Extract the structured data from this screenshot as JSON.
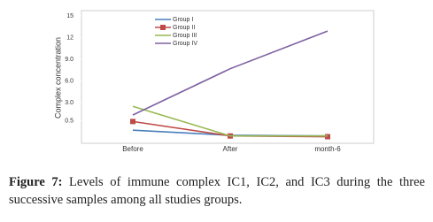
{
  "chart_data": {
    "type": "line",
    "y_label": "Complex concentration",
    "categories": [
      "Before",
      "After",
      "month-6"
    ],
    "series": [
      {
        "name": "Group I",
        "color": "#4a7ebb",
        "values": [
          -0.8,
          -1.5,
          -1.6
        ]
      },
      {
        "name": "Group II",
        "color": "#be4b48",
        "marker": "square",
        "values": [
          0.4,
          -1.6,
          -1.7
        ]
      },
      {
        "name": "Group III",
        "color": "#98b954",
        "values": [
          2.5,
          -1.6,
          -1.6
        ]
      },
      {
        "name": "Group IV",
        "color": "#7d60a0",
        "values": [
          1.3,
          7.7,
          12.9
        ]
      }
    ],
    "ylim": [
      -2,
      15
    ],
    "yticks": [
      0.5,
      {
        "value": 3,
        "label": "3.0"
      },
      {
        "value": 6,
        "label": "6.0"
      },
      {
        "value": 9,
        "label": "9.0"
      },
      12,
      15
    ],
    "grid": false,
    "legend": "top"
  },
  "caption": {
    "label": "Figure 7:",
    "text": "Levels of immune complex IC1, IC2, and IC3 during the three successive samples among all studies groups."
  }
}
